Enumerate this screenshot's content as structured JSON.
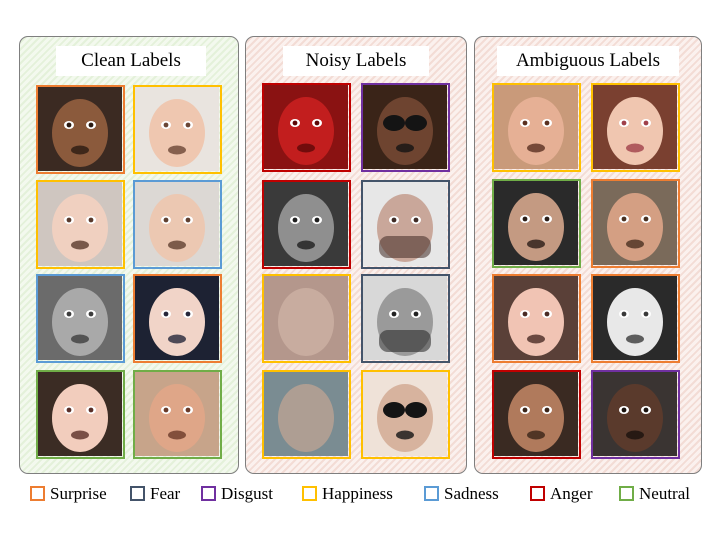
{
  "emotions": {
    "surprise": {
      "label": "Surprise",
      "color": "#ed7d31"
    },
    "fear": {
      "label": "Fear",
      "color": "#44546a"
    },
    "disgust": {
      "label": "Disgust",
      "color": "#7030a0"
    },
    "happiness": {
      "label": "Happiness",
      "color": "#ffc000"
    },
    "sadness": {
      "label": "Sadness",
      "color": "#5b9bd5"
    },
    "anger": {
      "label": "Anger",
      "color": "#c00000"
    },
    "neutral": {
      "label": "Neutral",
      "color": "#70ad47"
    }
  },
  "legend": [
    "surprise",
    "fear",
    "disgust",
    "happiness",
    "sadness",
    "anger",
    "neutral"
  ],
  "panels": {
    "clean": {
      "title": "Clean Labels",
      "tiles": [
        {
          "emotion": "surprise",
          "face": "face-photo"
        },
        {
          "emotion": "happiness",
          "face": "face-photo"
        },
        {
          "emotion": "happiness",
          "face": "face-photo"
        },
        {
          "emotion": "sadness",
          "face": "face-photo"
        },
        {
          "emotion": "sadness",
          "face": "face-photo"
        },
        {
          "emotion": "surprise",
          "face": "face-photo"
        },
        {
          "emotion": "neutral",
          "face": "face-photo"
        },
        {
          "emotion": "neutral",
          "face": "face-photo"
        }
      ]
    },
    "noisy": {
      "title": "Noisy Labels",
      "tiles": [
        {
          "emotion": "anger",
          "face": "red-tinted-face-photo"
        },
        {
          "emotion": "disgust",
          "face": "face-with-sunglasses-photo"
        },
        {
          "emotion": "anger",
          "face": "grayscale-face-photo"
        },
        {
          "emotion": "fear",
          "face": "face-covering-mouth-photo"
        },
        {
          "emotion": "happiness",
          "face": "blurred-skin-photo"
        },
        {
          "emotion": "fear",
          "face": "grayscale-face-covering-mouth-photo"
        },
        {
          "emotion": "happiness",
          "face": "blurred-face-photo"
        },
        {
          "emotion": "happiness",
          "face": "face-with-sunglasses-photo"
        }
      ]
    },
    "ambiguous": {
      "title": "Ambiguous Labels",
      "tiles": [
        {
          "emotion": "happiness",
          "face": "face-photo"
        },
        {
          "emotion": "happiness",
          "face": "face-photo"
        },
        {
          "emotion": "neutral",
          "face": "face-photo"
        },
        {
          "emotion": "surprise",
          "face": "face-photo"
        },
        {
          "emotion": "surprise",
          "face": "face-photo"
        },
        {
          "emotion": "surprise",
          "face": "grayscale-face-photo"
        },
        {
          "emotion": "anger",
          "face": "face-photo"
        },
        {
          "emotion": "disgust",
          "face": "face-photo"
        }
      ]
    }
  }
}
